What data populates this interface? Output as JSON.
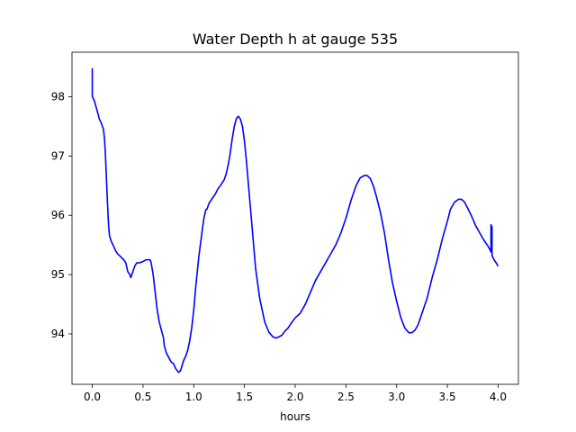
{
  "chart_data": {
    "type": "line",
    "title": "Water Depth h at gauge 535",
    "xlabel": "hours",
    "ylabel": "",
    "xlim": [
      -0.2,
      4.2
    ],
    "ylim": [
      93.15,
      98.75
    ],
    "x_ticks": [
      0.0,
      0.5,
      1.0,
      1.5,
      2.0,
      2.5,
      3.0,
      3.5,
      4.0
    ],
    "x_tick_labels": [
      "0.0",
      "0.5",
      "1.0",
      "1.5",
      "2.0",
      "2.5",
      "3.0",
      "3.5",
      "4.0"
    ],
    "y_ticks": [
      94,
      95,
      96,
      97,
      98
    ],
    "y_tick_labels": [
      "94",
      "95",
      "96",
      "97",
      "98"
    ],
    "grid": false,
    "series": [
      {
        "color": "#0000ff",
        "points": [
          [
            0.0,
            98.48
          ],
          [
            0.0,
            98.0
          ],
          [
            0.01,
            97.97
          ],
          [
            0.02,
            97.93
          ],
          [
            0.03,
            97.87
          ],
          [
            0.05,
            97.75
          ],
          [
            0.07,
            97.62
          ],
          [
            0.09,
            97.55
          ],
          [
            0.11,
            97.45
          ],
          [
            0.12,
            97.3
          ],
          [
            0.13,
            97.0
          ],
          [
            0.14,
            96.6
          ],
          [
            0.15,
            96.2
          ],
          [
            0.16,
            95.85
          ],
          [
            0.17,
            95.65
          ],
          [
            0.19,
            95.55
          ],
          [
            0.21,
            95.48
          ],
          [
            0.23,
            95.4
          ],
          [
            0.25,
            95.35
          ],
          [
            0.28,
            95.3
          ],
          [
            0.31,
            95.25
          ],
          [
            0.33,
            95.2
          ],
          [
            0.35,
            95.05
          ],
          [
            0.37,
            95.0
          ],
          [
            0.38,
            94.95
          ],
          [
            0.4,
            95.05
          ],
          [
            0.42,
            95.15
          ],
          [
            0.44,
            95.2
          ],
          [
            0.47,
            95.2
          ],
          [
            0.5,
            95.22
          ],
          [
            0.53,
            95.25
          ],
          [
            0.57,
            95.25
          ],
          [
            0.58,
            95.2
          ],
          [
            0.6,
            95.0
          ],
          [
            0.62,
            94.7
          ],
          [
            0.64,
            94.4
          ],
          [
            0.66,
            94.2
          ],
          [
            0.68,
            94.07
          ],
          [
            0.7,
            93.95
          ],
          [
            0.71,
            93.8
          ],
          [
            0.73,
            93.68
          ],
          [
            0.76,
            93.58
          ],
          [
            0.78,
            93.52
          ],
          [
            0.8,
            93.5
          ],
          [
            0.82,
            93.42
          ],
          [
            0.85,
            93.35
          ],
          [
            0.87,
            93.38
          ],
          [
            0.9,
            93.55
          ],
          [
            0.92,
            93.62
          ],
          [
            0.94,
            93.72
          ],
          [
            0.96,
            93.88
          ],
          [
            0.98,
            94.1
          ],
          [
            1.0,
            94.4
          ],
          [
            1.02,
            94.8
          ],
          [
            1.05,
            95.3
          ],
          [
            1.08,
            95.7
          ],
          [
            1.1,
            95.95
          ],
          [
            1.12,
            96.1
          ],
          [
            1.13,
            96.1
          ],
          [
            1.15,
            96.2
          ],
          [
            1.18,
            96.28
          ],
          [
            1.21,
            96.35
          ],
          [
            1.24,
            96.45
          ],
          [
            1.27,
            96.52
          ],
          [
            1.3,
            96.6
          ],
          [
            1.32,
            96.7
          ],
          [
            1.34,
            96.85
          ],
          [
            1.36,
            97.05
          ],
          [
            1.38,
            97.3
          ],
          [
            1.4,
            97.5
          ],
          [
            1.42,
            97.63
          ],
          [
            1.44,
            97.67
          ],
          [
            1.46,
            97.62
          ],
          [
            1.48,
            97.5
          ],
          [
            1.5,
            97.25
          ],
          [
            1.52,
            96.9
          ],
          [
            1.55,
            96.3
          ],
          [
            1.58,
            95.7
          ],
          [
            1.61,
            95.1
          ],
          [
            1.65,
            94.6
          ],
          [
            1.7,
            94.2
          ],
          [
            1.74,
            94.03
          ],
          [
            1.78,
            93.95
          ],
          [
            1.81,
            93.93
          ],
          [
            1.84,
            93.95
          ],
          [
            1.87,
            93.98
          ],
          [
            1.9,
            94.05
          ],
          [
            1.93,
            94.1
          ],
          [
            1.96,
            94.18
          ],
          [
            2.0,
            94.27
          ],
          [
            2.05,
            94.35
          ],
          [
            2.1,
            94.5
          ],
          [
            2.15,
            94.7
          ],
          [
            2.2,
            94.9
          ],
          [
            2.25,
            95.05
          ],
          [
            2.3,
            95.2
          ],
          [
            2.35,
            95.35
          ],
          [
            2.4,
            95.5
          ],
          [
            2.45,
            95.7
          ],
          [
            2.5,
            95.95
          ],
          [
            2.55,
            96.25
          ],
          [
            2.6,
            96.5
          ],
          [
            2.64,
            96.63
          ],
          [
            2.68,
            96.67
          ],
          [
            2.71,
            96.67
          ],
          [
            2.74,
            96.62
          ],
          [
            2.77,
            96.5
          ],
          [
            2.8,
            96.32
          ],
          [
            2.84,
            96.05
          ],
          [
            2.88,
            95.7
          ],
          [
            2.92,
            95.25
          ],
          [
            2.96,
            94.85
          ],
          [
            3.0,
            94.55
          ],
          [
            3.04,
            94.28
          ],
          [
            3.08,
            94.1
          ],
          [
            3.12,
            94.02
          ],
          [
            3.15,
            94.02
          ],
          [
            3.18,
            94.06
          ],
          [
            3.21,
            94.15
          ],
          [
            3.25,
            94.35
          ],
          [
            3.3,
            94.6
          ],
          [
            3.35,
            94.95
          ],
          [
            3.4,
            95.25
          ],
          [
            3.45,
            95.6
          ],
          [
            3.5,
            95.9
          ],
          [
            3.53,
            96.1
          ],
          [
            3.57,
            96.22
          ],
          [
            3.61,
            96.27
          ],
          [
            3.64,
            96.27
          ],
          [
            3.67,
            96.22
          ],
          [
            3.7,
            96.12
          ],
          [
            3.74,
            95.98
          ],
          [
            3.78,
            95.82
          ],
          [
            3.82,
            95.7
          ],
          [
            3.86,
            95.58
          ],
          [
            3.9,
            95.48
          ],
          [
            3.92,
            95.42
          ],
          [
            3.93,
            95.38
          ],
          [
            3.93,
            95.84
          ],
          [
            3.94,
            95.8
          ],
          [
            3.94,
            95.32
          ],
          [
            3.96,
            95.25
          ],
          [
            3.98,
            95.2
          ],
          [
            4.0,
            95.14
          ]
        ]
      }
    ]
  }
}
